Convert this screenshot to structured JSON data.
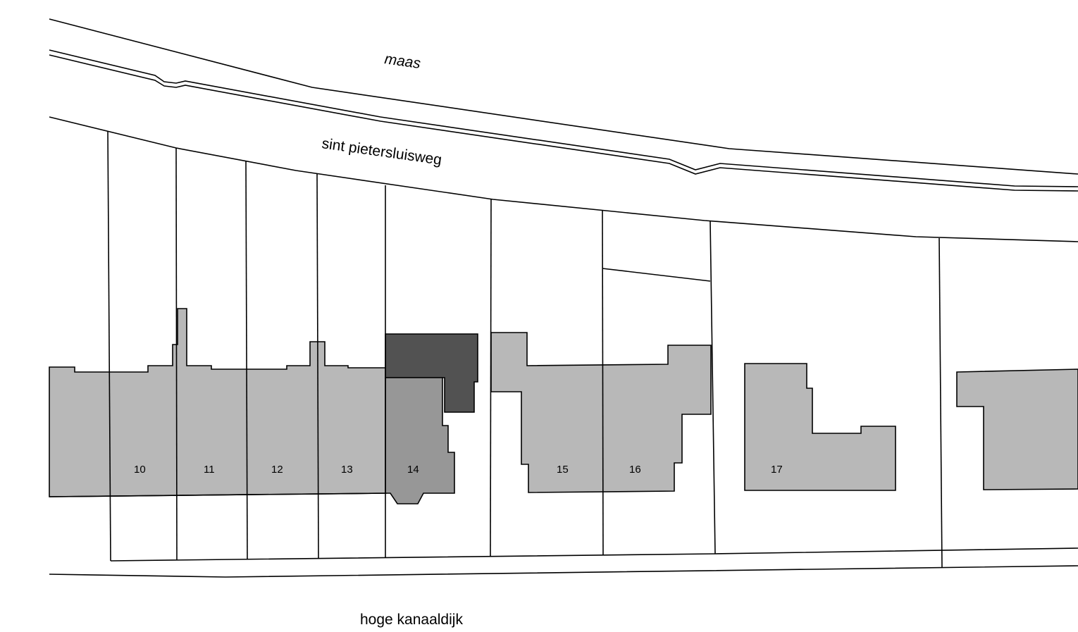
{
  "map": {
    "labels": {
      "river": "maas",
      "upper_street": "sint pietersluisweg",
      "lower_street": "hoge kanaaldijk"
    },
    "lots": [
      {
        "number": "10"
      },
      {
        "number": "11"
      },
      {
        "number": "12"
      },
      {
        "number": "13"
      },
      {
        "number": "14"
      },
      {
        "number": "15"
      },
      {
        "number": "16"
      },
      {
        "number": "17"
      }
    ],
    "colors": {
      "building_fill": "#b8b8b8",
      "highlight_building_fill": "#979797",
      "highlight_extension_fill": "#525252",
      "outline": "#000000",
      "background": "#ffffff"
    }
  }
}
